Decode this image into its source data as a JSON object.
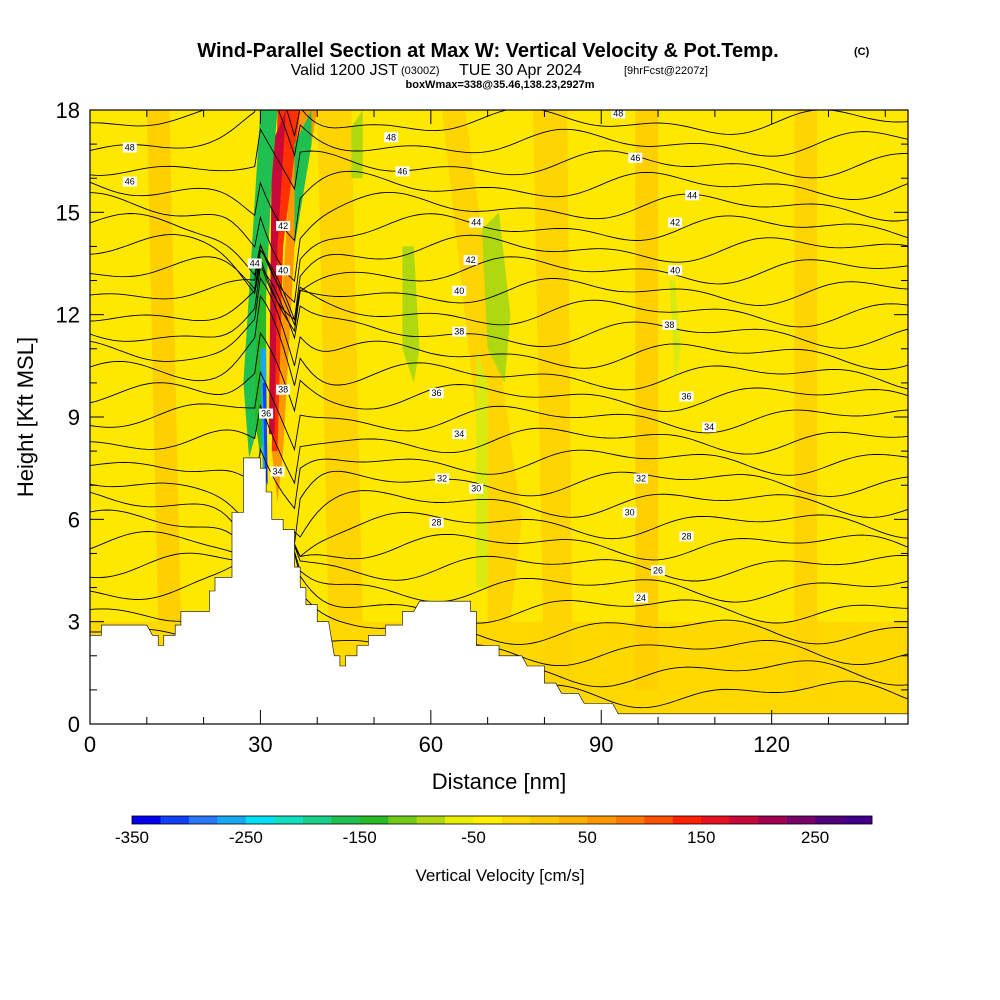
{
  "titles": {
    "main": "Wind-Parallel Section at Max W: Vertical Velocity & Pot.Temp.",
    "main_suffix": "(C)",
    "valid_a": "Valid 1200 JST",
    "valid_b": "(0300Z)",
    "valid_c": "TUE 30 Apr 2024",
    "valid_d": "[9hrFcst@2207z]",
    "info": "boxWmax=338@35.46,138.23,2927m"
  },
  "chart_data": {
    "type": "heatmap",
    "xlabel": "Distance [nm]",
    "ylabel": "Height [Kft MSL]",
    "xlim": [
      0,
      144
    ],
    "ylim": [
      0,
      18
    ],
    "x_ticks": [
      0,
      30,
      60,
      90,
      120
    ],
    "y_ticks": [
      0,
      3,
      6,
      9,
      12,
      15,
      18
    ],
    "colorbar": {
      "title": "Vertical Velocity [cm/s]",
      "min": -350,
      "max": 300,
      "step": 25,
      "tick_values": [
        -350,
        -250,
        -150,
        -50,
        50,
        150,
        250
      ],
      "tick_labels": [
        "-350",
        "-250",
        "-150",
        "-50",
        "50",
        "150",
        "250"
      ],
      "colors": [
        "#0000f0",
        "#1040f8",
        "#2a78f8",
        "#18a8f0",
        "#00e0f0",
        "#10e0c0",
        "#18d088",
        "#20c050",
        "#28b828",
        "#70c818",
        "#b0d810",
        "#e8f000",
        "#fff000",
        "#ffd800",
        "#ffc800",
        "#ffb000",
        "#ff9800",
        "#ff7800",
        "#ff5000",
        "#ff2000",
        "#e81020",
        "#c80838",
        "#a00050",
        "#780068",
        "#500078",
        "#400088"
      ]
    },
    "terrain_kft": [
      [
        0,
        2.6
      ],
      [
        2,
        2.6
      ],
      [
        2,
        2.9
      ],
      [
        10,
        2.9
      ],
      [
        11,
        2.6
      ],
      [
        12,
        2.6
      ],
      [
        12,
        2.3
      ],
      [
        13,
        2.3
      ],
      [
        13,
        2.6
      ],
      [
        15,
        2.6
      ],
      [
        15,
        2.9
      ],
      [
        16,
        2.9
      ],
      [
        16,
        3.3
      ],
      [
        21,
        3.3
      ],
      [
        21,
        3.9
      ],
      [
        22,
        3.9
      ],
      [
        22,
        4.3
      ],
      [
        25,
        4.3
      ],
      [
        25,
        6.2
      ],
      [
        27,
        6.2
      ],
      [
        27,
        7.8
      ],
      [
        30,
        7.8
      ],
      [
        30,
        7.5
      ],
      [
        31,
        7.5
      ],
      [
        31,
        6.8
      ],
      [
        32,
        6.8
      ],
      [
        32,
        6.0
      ],
      [
        34,
        6.0
      ],
      [
        34,
        5.7
      ],
      [
        36,
        5.7
      ],
      [
        36,
        4.6
      ],
      [
        37,
        4.6
      ],
      [
        37,
        4.0
      ],
      [
        38,
        4.0
      ],
      [
        38,
        3.5
      ],
      [
        40,
        3.5
      ],
      [
        40,
        3.0
      ],
      [
        42,
        3.0
      ],
      [
        43,
        2.0
      ],
      [
        44,
        2.0
      ],
      [
        44,
        1.7
      ],
      [
        45,
        1.7
      ],
      [
        45,
        2.0
      ],
      [
        47,
        2.0
      ],
      [
        47,
        2.3
      ],
      [
        49,
        2.3
      ],
      [
        49,
        2.6
      ],
      [
        52,
        2.6
      ],
      [
        52,
        2.9
      ],
      [
        55,
        2.9
      ],
      [
        55,
        3.3
      ],
      [
        57,
        3.3
      ],
      [
        58,
        3.6
      ],
      [
        67,
        3.6
      ],
      [
        67,
        3.3
      ],
      [
        68,
        3.3
      ],
      [
        68,
        2.3
      ],
      [
        72,
        2.3
      ],
      [
        72,
        2.0
      ],
      [
        76,
        2.0
      ],
      [
        77,
        1.7
      ],
      [
        80,
        1.7
      ],
      [
        80,
        1.2
      ],
      [
        82,
        1.2
      ],
      [
        83,
        0.9
      ],
      [
        86,
        0.9
      ],
      [
        87,
        0.6
      ],
      [
        92,
        0.6
      ],
      [
        93,
        0.3
      ],
      [
        144,
        0.3
      ]
    ],
    "theta_contours": [
      {
        "value": "24",
        "label_at": [
          97,
          3.7
        ]
      },
      {
        "value": "26",
        "label_at": [
          100,
          4.5
        ]
      },
      {
        "value": "28",
        "label_at": [
          61,
          5.9
        ],
        "label_at2": [
          105,
          5.5
        ]
      },
      {
        "value": "30",
        "label_at": [
          68,
          6.9
        ],
        "label_at2": [
          95,
          6.2
        ]
      },
      {
        "value": "32",
        "label_at": [
          62,
          7.2
        ],
        "label_at2": [
          97,
          7.2
        ]
      },
      {
        "value": "34",
        "label_at": [
          33,
          7.4
        ],
        "label_at2": [
          65,
          8.5
        ],
        "label_at3": [
          109,
          8.7
        ]
      },
      {
        "value": "36",
        "label_at": [
          31,
          9.1
        ],
        "label_at2": [
          61,
          9.7
        ],
        "label_at3": [
          105,
          9.6
        ]
      },
      {
        "value": "38",
        "label_at": [
          34,
          9.8
        ],
        "label_at2": [
          65,
          11.5
        ],
        "label_at3": [
          102,
          11.7
        ]
      },
      {
        "value": "40",
        "label_at": [
          34,
          13.3
        ],
        "label_at2": [
          65,
          12.7
        ],
        "label_at3": [
          103,
          13.3
        ]
      },
      {
        "value": "42",
        "label_at": [
          34,
          14.6
        ],
        "label_at2": [
          67,
          13.6
        ],
        "label_at3": [
          103,
          14.7
        ]
      },
      {
        "value": "44",
        "label_at": [
          29,
          13.5
        ],
        "label_at2": [
          68,
          14.7
        ],
        "label_at3": [
          106,
          15.5
        ]
      },
      {
        "value": "46",
        "label_at": [
          7,
          15.9
        ],
        "label_at2": [
          55,
          16.2
        ],
        "label_at3": [
          96,
          16.6
        ]
      },
      {
        "value": "48",
        "label_at": [
          7,
          16.9
        ],
        "label_at2": [
          53,
          17.2
        ],
        "label_at3": [
          93,
          17.9
        ]
      }
    ]
  }
}
